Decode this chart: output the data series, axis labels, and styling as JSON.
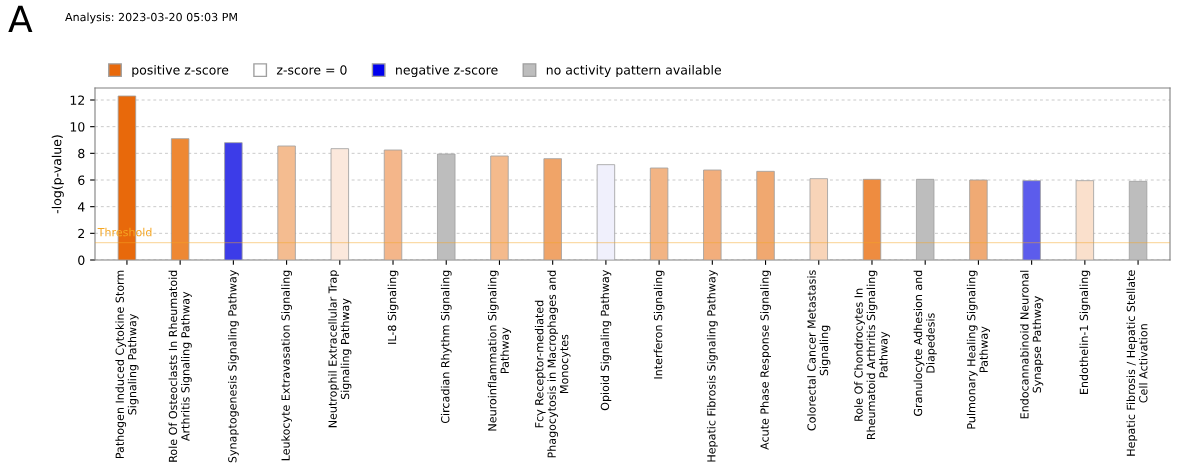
{
  "chart_data": {
    "type": "bar",
    "title": "Analysis: 2023-03-20 05:03 PM",
    "ylabel": "-log(p-value)",
    "annotations": [
      "A"
    ],
    "categories": [
      "Pathogen Induced Cytokine Storm\nSignaling Pathway",
      "Role Of Osteoclasts In Rheumatoid\nArthritis Signaling Pathway",
      "Synaptogenesis Signaling Pathway",
      "Leukocyte Extravasation Signaling",
      "Neutrophil Extracellular Trap\nSignaling Pathway",
      "IL-8 Signaling",
      "Circadian Rhythm Signaling",
      "Neuroinflammation Signaling\nPathway",
      "Fcγ Receptor-mediated\nPhagocytosis in Macrophages and\nMonocytes",
      "Opioid Signaling Pathway",
      "Interferon Signaling",
      "Hepatic Fibrosis Signaling Pathway",
      "Acute Phase Response Signaling",
      "Colorectal Cancer Metastasis\nSignaling",
      "Role Of Chondrocytes In\nRheumatoid Arthritis Signaling\nPathway",
      "Granulocyte Adhesion and\nDiapedesis",
      "Pulmonary Healing Signaling\nPathway",
      "Endocannabinoid Neuronal\nSynapse Pathway",
      "Endothelin-1 Signaling",
      "Hepatic Fibrosis / Hepatic Stellate\nCell Activation"
    ],
    "series": [
      {
        "name": "positive z-score",
        "color": "#e8690b",
        "values": [
          12.3,
          9.1,
          null,
          8.55,
          8.35,
          8.25,
          null,
          7.8,
          7.6,
          null,
          6.9,
          6.75,
          6.65,
          6.1,
          6.05,
          null,
          6.0,
          null,
          5.95,
          null
        ],
        "colors": [
          "#e8690b",
          "#ee8833",
          null,
          "#f4bc90",
          "#fbe8dc",
          "#f4b68a",
          null,
          "#f4ba8c",
          "#f0a468",
          null,
          "#f2b484",
          "#f2ae7c",
          "#f0a870",
          "#f8d4b8",
          "#ee8c40",
          null,
          "#f0aa74",
          null,
          "#fae0cc",
          null
        ]
      },
      {
        "name": "z-score = 0",
        "color": "#ffffff",
        "values": [
          null,
          null,
          null,
          null,
          null,
          null,
          null,
          null,
          null,
          null,
          null,
          null,
          null,
          null,
          null,
          null,
          null,
          null,
          null,
          null
        ]
      },
      {
        "name": "negative z-score",
        "color": "#0000ee",
        "values": [
          null,
          null,
          8.8,
          null,
          null,
          null,
          null,
          null,
          null,
          7.15,
          null,
          null,
          null,
          null,
          null,
          null,
          null,
          5.95,
          null,
          null
        ],
        "colors": [
          null,
          null,
          "#3c3ce8",
          null,
          null,
          null,
          null,
          null,
          null,
          "#f0f0fc",
          null,
          null,
          null,
          null,
          null,
          null,
          null,
          "#5c5cec",
          null,
          null
        ]
      },
      {
        "name": "no activity pattern available",
        "color": "#bdbdbd",
        "values": [
          null,
          null,
          null,
          null,
          null,
          null,
          7.95,
          null,
          null,
          null,
          null,
          null,
          null,
          null,
          null,
          6.05,
          null,
          null,
          null,
          5.9
        ]
      }
    ],
    "ylim": [
      0,
      12.9
    ],
    "yticks": [
      0,
      2,
      4,
      6,
      8,
      10,
      12
    ],
    "grid": "y",
    "legend": "top left",
    "ref_lines": [
      {
        "axis": "y",
        "value": 1.3,
        "label": "Threshold",
        "color": "#f5a623"
      }
    ]
  }
}
